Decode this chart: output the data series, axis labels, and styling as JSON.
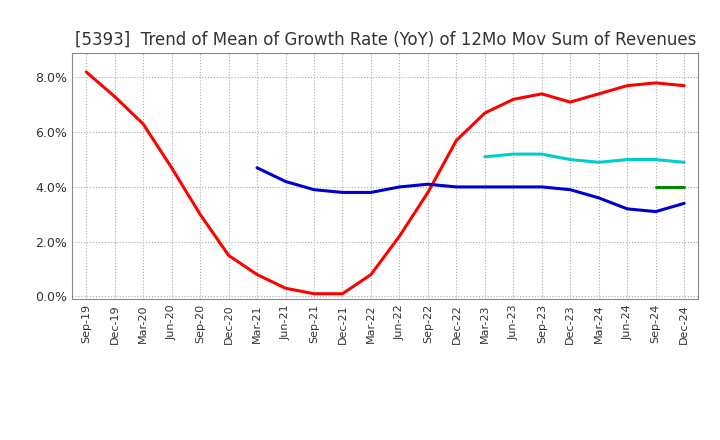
{
  "title": "[5393]  Trend of Mean of Growth Rate (YoY) of 12Mo Mov Sum of Revenues",
  "title_fontsize": 12,
  "ylim": [
    -0.001,
    0.089
  ],
  "yticks": [
    0.0,
    0.02,
    0.04,
    0.06,
    0.08
  ],
  "ytick_labels": [
    "0.0%",
    "2.0%",
    "4.0%",
    "6.0%",
    "8.0%"
  ],
  "background_color": "#ffffff",
  "grid_color": "#aaaaaa",
  "x_labels": [
    "Sep-19",
    "Dec-19",
    "Mar-20",
    "Jun-20",
    "Sep-20",
    "Dec-20",
    "Mar-21",
    "Jun-21",
    "Sep-21",
    "Dec-21",
    "Mar-22",
    "Jun-22",
    "Sep-22",
    "Dec-22",
    "Mar-23",
    "Jun-23",
    "Sep-23",
    "Dec-23",
    "Mar-24",
    "Jun-24",
    "Sep-24",
    "Dec-24"
  ],
  "line_3y": [
    0.082,
    0.073,
    0.063,
    0.047,
    0.03,
    0.015,
    0.008,
    0.003,
    0.001,
    0.001,
    0.008,
    0.022,
    0.038,
    0.057,
    0.067,
    0.072,
    0.074,
    0.071,
    0.074,
    0.077,
    0.078,
    0.077
  ],
  "line_5y": [
    null,
    null,
    null,
    null,
    null,
    null,
    0.047,
    0.042,
    0.039,
    0.038,
    0.038,
    0.04,
    0.041,
    0.04,
    0.04,
    0.04,
    0.04,
    0.039,
    0.036,
    0.032,
    0.031,
    0.034
  ],
  "line_7y": [
    null,
    null,
    null,
    null,
    null,
    null,
    null,
    null,
    null,
    null,
    null,
    null,
    null,
    null,
    0.051,
    0.052,
    0.052,
    0.05,
    0.049,
    0.05,
    0.05,
    0.049
  ],
  "line_10y": [
    null,
    null,
    null,
    null,
    null,
    null,
    null,
    null,
    null,
    null,
    null,
    null,
    null,
    null,
    null,
    null,
    null,
    null,
    null,
    null,
    0.04,
    0.04
  ],
  "color_3y": "#ff0000",
  "color_5y": "#0000cc",
  "color_7y": "#00cccc",
  "color_10y": "#008800",
  "linewidth": 2.2
}
